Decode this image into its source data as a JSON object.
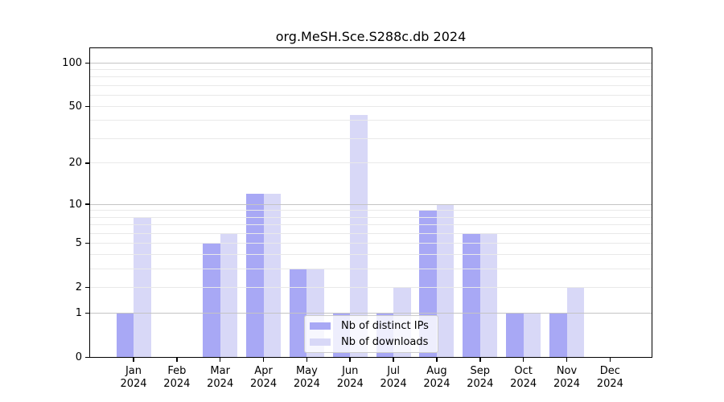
{
  "chart_data": {
    "type": "bar",
    "title": "org.MeSH.Sce.S288c.db 2024",
    "categories": [
      "Jan 2024",
      "Feb 2024",
      "Mar 2024",
      "Apr 2024",
      "May 2024",
      "Jun 2024",
      "Jul 2024",
      "Aug 2024",
      "Sep 2024",
      "Oct 2024",
      "Nov 2024",
      "Dec 2024"
    ],
    "series": [
      {
        "name": "Nb of distinct IPs",
        "color": "#a8a8f5",
        "values": [
          1,
          0,
          5,
          12,
          3,
          1,
          1,
          9,
          6,
          1,
          1,
          0
        ]
      },
      {
        "name": "Nb of downloads",
        "color": "#d8d8f7",
        "values": [
          8,
          0,
          6,
          12,
          3,
          44,
          2,
          10,
          6,
          1,
          2,
          0
        ]
      }
    ],
    "yscale": "log1p",
    "ylim": [
      0,
      128
    ],
    "yticks": [
      0,
      1,
      2,
      5,
      10,
      20,
      50,
      100
    ],
    "grid": {
      "major": [
        1,
        10,
        100
      ],
      "minor": [
        2,
        3,
        4,
        5,
        6,
        7,
        8,
        9,
        20,
        30,
        40,
        50,
        60,
        70,
        80,
        90
      ],
      "major_color": "#c4c4c4",
      "minor_color": "#e9e9e9"
    },
    "legend_position": "lower center",
    "xlabel": "",
    "ylabel": ""
  }
}
